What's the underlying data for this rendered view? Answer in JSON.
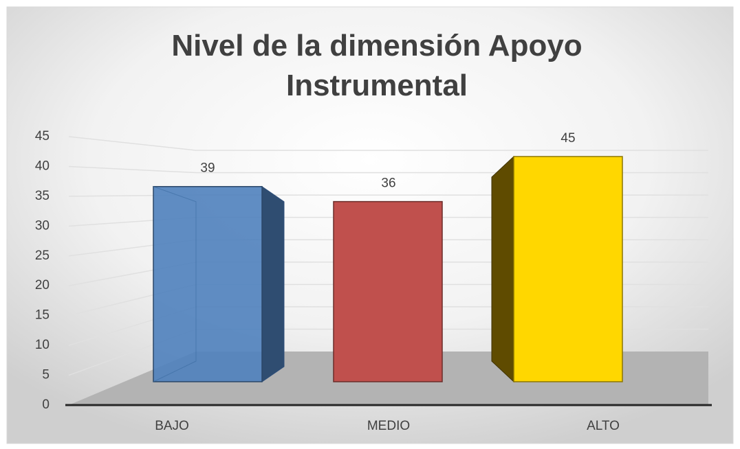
{
  "chart_data": {
    "type": "bar3d",
    "title": "Nivel de la dimensión  Apoyo Instrumental",
    "categories": [
      "BAJO",
      "MEDIO",
      "ALTO"
    ],
    "values": [
      39,
      36,
      45
    ],
    "colors": [
      "#4f81bd",
      "#c0504d",
      "#ffd700"
    ],
    "ylim": [
      0,
      45
    ],
    "yticks": [
      0,
      5,
      10,
      15,
      20,
      25,
      30,
      35,
      40,
      45
    ],
    "grid": true
  }
}
